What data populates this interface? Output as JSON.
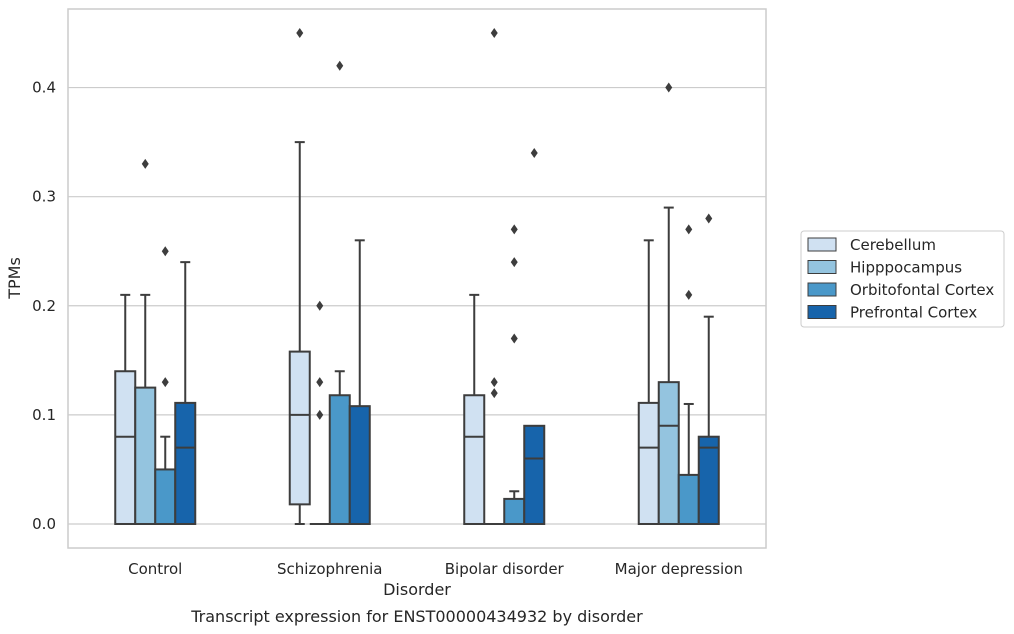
{
  "chart_data": {
    "type": "boxplot",
    "caption": "Transcript expression for ENST00000434932 by disorder",
    "xlabel": "Disorder",
    "ylabel": "TPMs",
    "ylim": [
      -0.022,
      0.472
    ],
    "yticks": [
      0.0,
      0.1,
      0.2,
      0.3,
      0.4
    ],
    "ytick_labels": [
      "0.0",
      "0.1",
      "0.2",
      "0.3",
      "0.4"
    ],
    "grid": "horizontal",
    "legend_position": "right",
    "categories": [
      "Control",
      "Schizophrenia",
      "Bipolar disorder",
      "Major depression"
    ],
    "series": [
      {
        "name": "Cerebellum",
        "color": "#d0e1f2",
        "boxes": [
          {
            "q1": 0.0,
            "median": 0.08,
            "q3": 0.14,
            "whisker_low": 0.0,
            "whisker_high": 0.21,
            "outliers": []
          },
          {
            "q1": 0.018,
            "median": 0.1,
            "q3": 0.158,
            "whisker_low": 0.0,
            "whisker_high": 0.35,
            "outliers": [
              0.45
            ]
          },
          {
            "q1": 0.0,
            "median": 0.08,
            "q3": 0.118,
            "whisker_low": 0.0,
            "whisker_high": 0.21,
            "outliers": []
          },
          {
            "q1": 0.0,
            "median": 0.07,
            "q3": 0.111,
            "whisker_low": 0.0,
            "whisker_high": 0.26,
            "outliers": []
          }
        ]
      },
      {
        "name": "Hipppocampus",
        "color": "#94c4df",
        "boxes": [
          {
            "q1": 0.0,
            "median": 0.0,
            "q3": 0.125,
            "whisker_low": 0.0,
            "whisker_high": 0.21,
            "outliers": [
              0.33
            ]
          },
          {
            "q1": 0.0,
            "median": 0.0,
            "q3": 0.0,
            "whisker_low": 0.0,
            "whisker_high": 0.0,
            "outliers": [
              0.2,
              0.13,
              0.1
            ]
          },
          {
            "q1": 0.0,
            "median": 0.0,
            "q3": 0.0,
            "whisker_low": 0.0,
            "whisker_high": 0.0,
            "outliers": [
              0.45,
              0.13,
              0.12
            ]
          },
          {
            "q1": 0.0,
            "median": 0.09,
            "q3": 0.13,
            "whisker_low": 0.0,
            "whisker_high": 0.29,
            "outliers": [
              0.4
            ]
          }
        ]
      },
      {
        "name": "Orbitofontal Cortex",
        "color": "#4a98c9",
        "boxes": [
          {
            "q1": 0.0,
            "median": 0.0,
            "q3": 0.05,
            "whisker_low": 0.0,
            "whisker_high": 0.08,
            "outliers": [
              0.25,
              0.13
            ]
          },
          {
            "q1": 0.0,
            "median": 0.0,
            "q3": 0.118,
            "whisker_low": 0.0,
            "whisker_high": 0.14,
            "outliers": [
              0.42
            ]
          },
          {
            "q1": 0.0,
            "median": 0.0,
            "q3": 0.023,
            "whisker_low": 0.0,
            "whisker_high": 0.03,
            "outliers": [
              0.27,
              0.24,
              0.17
            ]
          },
          {
            "q1": 0.0,
            "median": 0.0,
            "q3": 0.045,
            "whisker_low": 0.0,
            "whisker_high": 0.11,
            "outliers": [
              0.27,
              0.21
            ]
          }
        ]
      },
      {
        "name": "Prefrontal Cortex",
        "color": "#1764ab",
        "boxes": [
          {
            "q1": 0.0,
            "median": 0.07,
            "q3": 0.111,
            "whisker_low": 0.0,
            "whisker_high": 0.24,
            "outliers": []
          },
          {
            "q1": 0.0,
            "median": 0.0,
            "q3": 0.108,
            "whisker_low": 0.0,
            "whisker_high": 0.26,
            "outliers": []
          },
          {
            "q1": 0.0,
            "median": 0.06,
            "q3": 0.09,
            "whisker_low": 0.0,
            "whisker_high": 0.09,
            "outliers": [
              0.34
            ]
          },
          {
            "q1": 0.0,
            "median": 0.07,
            "q3": 0.08,
            "whisker_low": 0.0,
            "whisker_high": 0.19,
            "outliers": [
              0.28
            ]
          }
        ]
      }
    ]
  },
  "colors": {
    "grid": "#cccccc",
    "frame": "#cccccc",
    "box_edge": "#3d3d3d"
  }
}
